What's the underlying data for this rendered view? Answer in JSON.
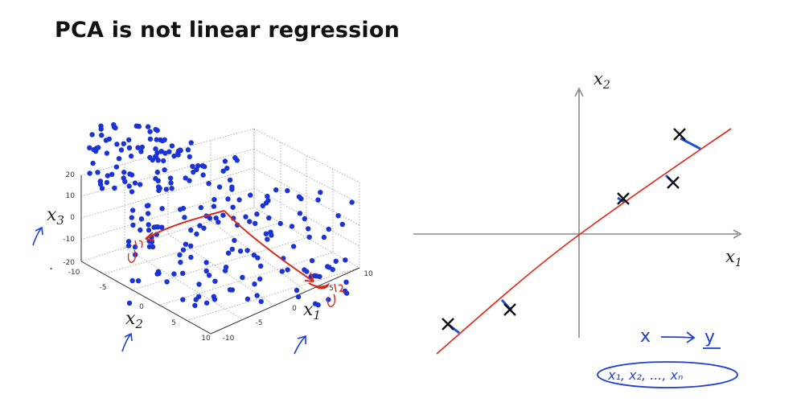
{
  "title": "PCA is not linear regression",
  "plot3d": {
    "z_ticks": [
      "20",
      "10",
      "0",
      "-10",
      "-20"
    ],
    "y_ticks": [
      "-10",
      "-5",
      "0",
      "5",
      "10"
    ],
    "x_ticks": [
      "-10",
      "-5",
      "0",
      "5",
      "10"
    ],
    "xlabel": {
      "base": "x",
      "sub": "1"
    },
    "ylabel": {
      "base": "x",
      "sub": "2"
    },
    "zlabel": {
      "base": "x",
      "sub": "3"
    },
    "vector1_label": "u(1)",
    "vector2_label": "u(2)",
    "point_color": "#1a33d6",
    "vector_color": "#d42a1a"
  },
  "plot2d": {
    "xlabel": {
      "base": "x",
      "sub": "1"
    },
    "ylabel": {
      "base": "x",
      "sub": "2"
    },
    "line_color": "#e02a1a",
    "projection_color": "#1f4fd8"
  },
  "handwriting": {
    "mapping_x": "x",
    "mapping_y": "y",
    "features": "x₁, x₂, ..., xₙ",
    "ink_color": "#1f3fd0"
  }
}
